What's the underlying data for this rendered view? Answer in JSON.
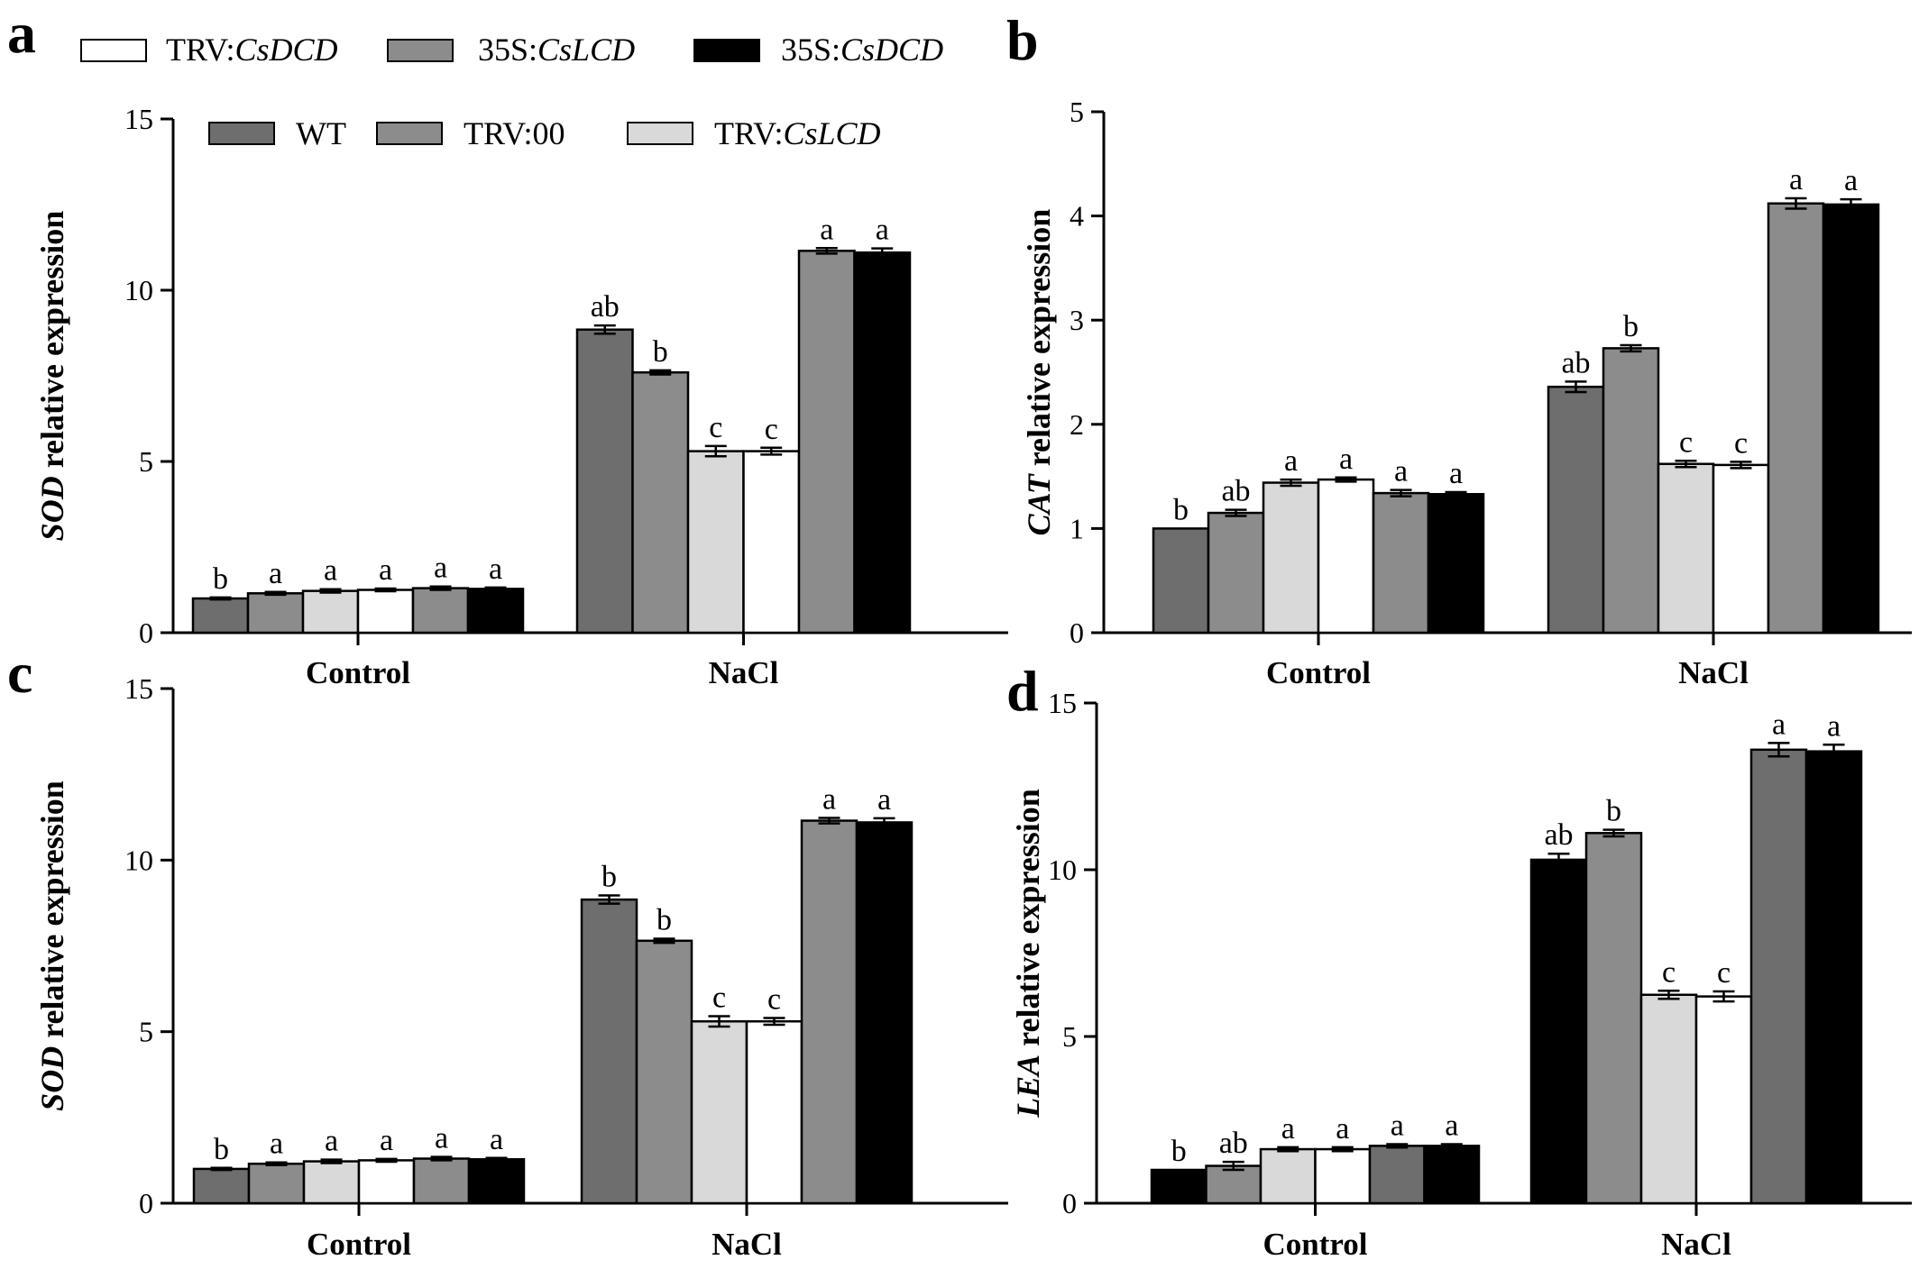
{
  "legend": {
    "row1": [
      {
        "prefix": "TRV:",
        "gene": "CsDCD",
        "color": "#ffffff"
      },
      {
        "prefix": "35S:",
        "gene": "CsLCD",
        "color": "#8c8c8c"
      },
      {
        "prefix": "35S:",
        "gene": "CsDCD",
        "color": "#000000"
      }
    ],
    "row2": [
      {
        "prefix": "WT",
        "gene": "",
        "color": "#6e6e6e"
      },
      {
        "prefix": "TRV:00",
        "gene": "",
        "color": "#8c8c8c"
      },
      {
        "prefix": "TRV:",
        "gene": "CsLCD",
        "color": "#d9d9d9"
      }
    ]
  },
  "chart_data": [
    {
      "panel": "a",
      "type": "bar",
      "ylabel_gene": "SOD",
      "ylabel_rest": " relative expression",
      "ylim": [
        0,
        15
      ],
      "yticks": [
        0,
        5,
        10,
        15
      ],
      "categories": [
        "Control",
        "NaCl"
      ],
      "bar_colors": [
        "#6e6e6e",
        "#8c8c8c",
        "#d9d9d9",
        "#ffffff",
        "#8c8c8c",
        "#000000"
      ],
      "values": [
        [
          1.0,
          1.15,
          1.22,
          1.25,
          1.3,
          1.28
        ],
        [
          8.85,
          7.6,
          5.3,
          5.3,
          11.15,
          11.1
        ]
      ],
      "errors": [
        [
          0.03,
          0.04,
          0.05,
          0.04,
          0.05,
          0.04
        ],
        [
          0.12,
          0.06,
          0.15,
          0.1,
          0.08,
          0.12
        ]
      ],
      "significance": [
        [
          "b",
          "a",
          "a",
          "a",
          "a",
          "a"
        ],
        [
          "ab",
          "b",
          "c",
          "c",
          "a",
          "a"
        ]
      ]
    },
    {
      "panel": "b",
      "type": "bar",
      "ylabel_gene": "CAT",
      "ylabel_rest": " relative expression",
      "ylim": [
        0,
        5
      ],
      "yticks": [
        0,
        1,
        2,
        3,
        4,
        5
      ],
      "categories": [
        "Control",
        "NaCl"
      ],
      "bar_colors": [
        "#6e6e6e",
        "#8c8c8c",
        "#d9d9d9",
        "#ffffff",
        "#8c8c8c",
        "#000000"
      ],
      "values": [
        [
          1.0,
          1.15,
          1.44,
          1.47,
          1.34,
          1.33
        ],
        [
          2.36,
          2.73,
          1.62,
          1.61,
          4.12,
          4.11
        ]
      ],
      "errors": [
        [
          0.0,
          0.03,
          0.03,
          0.02,
          0.03,
          0.02
        ],
        [
          0.05,
          0.03,
          0.03,
          0.03,
          0.05,
          0.05
        ]
      ],
      "significance": [
        [
          "b",
          "ab",
          "a",
          "a",
          "a",
          "a"
        ],
        [
          "ab",
          "b",
          "c",
          "c",
          "a",
          "a"
        ]
      ]
    },
    {
      "panel": "c",
      "type": "bar",
      "ylabel_gene": "SOD",
      "ylabel_rest": " relative expression",
      "ylim": [
        0,
        15
      ],
      "yticks": [
        0,
        5,
        10,
        15
      ],
      "categories": [
        "Control",
        "NaCl"
      ],
      "bar_colors": [
        "#6e6e6e",
        "#8c8c8c",
        "#d9d9d9",
        "#ffffff",
        "#8c8c8c",
        "#000000"
      ],
      "values": [
        [
          1.0,
          1.15,
          1.22,
          1.25,
          1.3,
          1.28
        ],
        [
          8.85,
          7.65,
          5.3,
          5.3,
          11.15,
          11.1
        ]
      ],
      "errors": [
        [
          0.03,
          0.04,
          0.05,
          0.04,
          0.05,
          0.04
        ],
        [
          0.12,
          0.06,
          0.15,
          0.1,
          0.08,
          0.12
        ]
      ],
      "significance": [
        [
          "b",
          "a",
          "a",
          "a",
          "a",
          "a"
        ],
        [
          "b",
          "b",
          "c",
          "c",
          "a",
          "a"
        ]
      ]
    },
    {
      "panel": "d",
      "type": "bar",
      "ylabel_gene": "LEA",
      "ylabel_rest": " relative expression",
      "ylim": [
        0,
        15
      ],
      "yticks": [
        0,
        5,
        10,
        15
      ],
      "categories": [
        "Control",
        "NaCl"
      ],
      "bar_colors": [
        "#000000",
        "#8c8c8c",
        "#d9d9d9",
        "#ffffff",
        "#6e6e6e",
        "#000000"
      ],
      "values": [
        [
          1.0,
          1.12,
          1.62,
          1.62,
          1.72,
          1.72
        ],
        [
          10.3,
          11.1,
          6.25,
          6.2,
          13.6,
          13.55
        ]
      ],
      "errors": [
        [
          0.0,
          0.12,
          0.06,
          0.06,
          0.05,
          0.05
        ],
        [
          0.18,
          0.1,
          0.12,
          0.15,
          0.2,
          0.2
        ]
      ],
      "significance": [
        [
          "b",
          "ab",
          "a",
          "a",
          "a",
          "a"
        ],
        [
          "ab",
          "b",
          "c",
          "c",
          "a",
          "a"
        ]
      ]
    }
  ]
}
